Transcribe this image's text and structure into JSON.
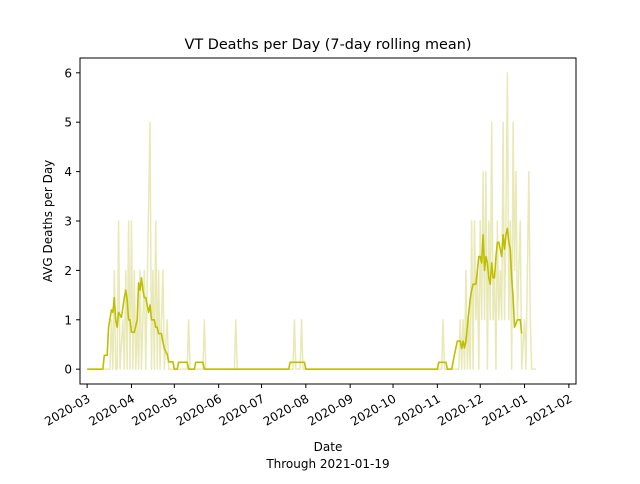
{
  "chart_data": {
    "type": "line",
    "title": "VT Deaths per Day (7-day rolling mean)",
    "xlabel": "Date",
    "xlabel_sub": "Through 2021-01-19",
    "ylabel": "AVG Deaths per Day",
    "xlim": [
      "2020-02-25",
      "2021-02-06"
    ],
    "ylim": [
      -0.3,
      6.3
    ],
    "x_ticks": [
      "2020-03",
      "2020-04",
      "2020-05",
      "2020-06",
      "2020-07",
      "2020-08",
      "2020-09",
      "2020-10",
      "2020-11",
      "2020-12",
      "2021-01",
      "2021-02"
    ],
    "y_ticks": [
      0,
      1,
      2,
      3,
      4,
      5,
      6
    ],
    "grid": false,
    "series": [
      {
        "role": "daily",
        "color": "#e9e9b8",
        "points": [
          [
            "2020-03-01",
            0
          ],
          [
            "2020-03-11",
            0
          ],
          [
            "2020-03-12",
            0
          ],
          [
            "2020-03-13",
            0
          ],
          [
            "2020-03-17",
            0
          ],
          [
            "2020-03-18",
            1
          ],
          [
            "2020-03-19",
            0
          ],
          [
            "2020-03-20",
            2
          ],
          [
            "2020-03-21",
            0
          ],
          [
            "2020-03-22",
            0
          ],
          [
            "2020-03-23",
            3
          ],
          [
            "2020-03-24",
            0
          ],
          [
            "2020-03-26",
            1
          ],
          [
            "2020-03-27",
            0
          ],
          [
            "2020-03-28",
            2
          ],
          [
            "2020-03-29",
            0
          ],
          [
            "2020-03-30",
            3
          ],
          [
            "2020-03-31",
            0
          ],
          [
            "2020-04-01",
            3
          ],
          [
            "2020-04-02",
            0
          ],
          [
            "2020-04-03",
            2
          ],
          [
            "2020-04-04",
            0
          ],
          [
            "2020-04-05",
            1
          ],
          [
            "2020-04-06",
            0
          ],
          [
            "2020-04-07",
            2
          ],
          [
            "2020-04-08",
            0
          ],
          [
            "2020-04-09",
            1
          ],
          [
            "2020-04-10",
            2
          ],
          [
            "2020-04-11",
            0
          ],
          [
            "2020-04-14",
            5
          ],
          [
            "2020-04-15",
            0
          ],
          [
            "2020-04-16",
            2
          ],
          [
            "2020-04-17",
            0
          ],
          [
            "2020-04-18",
            3
          ],
          [
            "2020-04-19",
            0
          ],
          [
            "2020-04-20",
            2
          ],
          [
            "2020-04-21",
            0
          ],
          [
            "2020-04-23",
            2
          ],
          [
            "2020-04-24",
            0
          ],
          [
            "2020-04-26",
            1
          ],
          [
            "2020-04-27",
            0
          ],
          [
            "2020-04-29",
            0
          ],
          [
            "2020-05-10",
            0
          ],
          [
            "2020-05-11",
            1
          ],
          [
            "2020-05-12",
            0
          ],
          [
            "2020-05-21",
            0
          ],
          [
            "2020-05-22",
            1
          ],
          [
            "2020-05-23",
            0
          ],
          [
            "2020-06-12",
            0
          ],
          [
            "2020-06-13",
            1
          ],
          [
            "2020-06-14",
            0
          ],
          [
            "2020-07-23",
            0
          ],
          [
            "2020-07-24",
            1
          ],
          [
            "2020-07-25",
            0
          ],
          [
            "2020-07-28",
            0
          ],
          [
            "2020-07-29",
            1
          ],
          [
            "2020-07-30",
            0
          ],
          [
            "2020-11-04",
            0
          ],
          [
            "2020-11-05",
            1
          ],
          [
            "2020-11-06",
            0
          ],
          [
            "2020-11-16",
            0
          ],
          [
            "2020-11-17",
            1
          ],
          [
            "2020-11-18",
            0
          ],
          [
            "2020-11-19",
            1
          ],
          [
            "2020-11-20",
            0
          ],
          [
            "2020-11-21",
            2
          ],
          [
            "2020-11-22",
            0
          ],
          [
            "2020-11-23",
            1
          ],
          [
            "2020-11-24",
            0
          ],
          [
            "2020-11-25",
            3
          ],
          [
            "2020-11-26",
            0
          ],
          [
            "2020-11-27",
            3
          ],
          [
            "2020-11-28",
            1
          ],
          [
            "2020-11-29",
            2
          ],
          [
            "2020-11-30",
            0
          ],
          [
            "2020-12-01",
            3
          ],
          [
            "2020-12-02",
            1
          ],
          [
            "2020-12-03",
            4
          ],
          [
            "2020-12-04",
            1
          ],
          [
            "2020-12-05",
            4
          ],
          [
            "2020-12-06",
            0
          ],
          [
            "2020-12-07",
            3
          ],
          [
            "2020-12-08",
            1
          ],
          [
            "2020-12-09",
            5
          ],
          [
            "2020-12-10",
            1
          ],
          [
            "2020-12-11",
            2
          ],
          [
            "2020-12-12",
            0
          ],
          [
            "2020-12-13",
            3
          ],
          [
            "2020-12-14",
            1
          ],
          [
            "2020-12-15",
            2
          ],
          [
            "2020-12-16",
            1
          ],
          [
            "2020-12-17",
            5
          ],
          [
            "2020-12-18",
            1
          ],
          [
            "2020-12-19",
            3
          ],
          [
            "2020-12-20",
            6
          ],
          [
            "2020-12-21",
            1
          ],
          [
            "2020-12-22",
            3
          ],
          [
            "2020-12-23",
            0
          ],
          [
            "2020-12-24",
            5
          ],
          [
            "2020-12-25",
            2
          ],
          [
            "2020-12-26",
            4
          ],
          [
            "2020-12-27",
            1
          ],
          [
            "2020-12-28",
            2
          ],
          [
            "2020-12-29",
            3
          ],
          [
            "2020-12-30",
            0
          ],
          [
            "2021-01-01",
            1
          ],
          [
            "2021-01-02",
            0
          ],
          [
            "2021-01-04",
            4
          ],
          [
            "2021-01-05",
            1
          ],
          [
            "2021-01-06",
            0
          ],
          [
            "2021-01-09",
            0
          ]
        ]
      },
      {
        "role": "rolling-mean",
        "color": "#bfbf00",
        "points": [
          [
            "2020-03-01",
            0
          ],
          [
            "2020-03-12",
            0
          ],
          [
            "2020-03-13",
            0.28
          ],
          [
            "2020-03-15",
            0.28
          ],
          [
            "2020-03-16",
            0.85
          ],
          [
            "2020-03-18",
            1.2
          ],
          [
            "2020-03-19",
            1.15
          ],
          [
            "2020-03-20",
            1.45
          ],
          [
            "2020-03-21",
            1.0
          ],
          [
            "2020-03-22",
            0.85
          ],
          [
            "2020-03-23",
            1.15
          ],
          [
            "2020-03-25",
            1.05
          ],
          [
            "2020-03-27",
            1.45
          ],
          [
            "2020-03-28",
            1.6
          ],
          [
            "2020-03-29",
            1.4
          ],
          [
            "2020-03-30",
            1.0
          ],
          [
            "2020-03-31",
            1.0
          ],
          [
            "2020-04-01",
            0.75
          ],
          [
            "2020-04-03",
            0.75
          ],
          [
            "2020-04-05",
            1.0
          ],
          [
            "2020-04-06",
            1.75
          ],
          [
            "2020-04-07",
            1.6
          ],
          [
            "2020-04-08",
            1.85
          ],
          [
            "2020-04-09",
            1.6
          ],
          [
            "2020-04-10",
            1.45
          ],
          [
            "2020-04-11",
            1.45
          ],
          [
            "2020-04-13",
            1.15
          ],
          [
            "2020-04-14",
            1.3
          ],
          [
            "2020-04-15",
            1.0
          ],
          [
            "2020-04-17",
            1.0
          ],
          [
            "2020-04-18",
            0.85
          ],
          [
            "2020-04-19",
            0.85
          ],
          [
            "2020-04-20",
            0.72
          ],
          [
            "2020-04-22",
            0.72
          ],
          [
            "2020-04-23",
            0.55
          ],
          [
            "2020-04-24",
            0.42
          ],
          [
            "2020-04-26",
            0.3
          ],
          [
            "2020-04-27",
            0.15
          ],
          [
            "2020-04-30",
            0.15
          ],
          [
            "2020-05-01",
            0
          ],
          [
            "2020-05-03",
            0
          ],
          [
            "2020-05-04",
            0.14
          ],
          [
            "2020-05-10",
            0.14
          ],
          [
            "2020-05-11",
            0
          ],
          [
            "2020-05-15",
            0
          ],
          [
            "2020-05-16",
            0.14
          ],
          [
            "2020-05-21",
            0.14
          ],
          [
            "2020-05-22",
            0
          ],
          [
            "2020-07-20",
            0
          ],
          [
            "2020-07-21",
            0.14
          ],
          [
            "2020-07-31",
            0.14
          ],
          [
            "2020-08-01",
            0
          ],
          [
            "2020-11-01",
            0
          ],
          [
            "2020-11-02",
            0.14
          ],
          [
            "2020-11-07",
            0.14
          ],
          [
            "2020-11-08",
            0
          ],
          [
            "2020-11-11",
            0
          ],
          [
            "2020-11-12",
            0.14
          ],
          [
            "2020-11-13",
            0.3
          ],
          [
            "2020-11-15",
            0.57
          ],
          [
            "2020-11-17",
            0.57
          ],
          [
            "2020-11-18",
            0.42
          ],
          [
            "2020-11-19",
            0.57
          ],
          [
            "2020-11-20",
            0.43
          ],
          [
            "2020-11-21",
            0.57
          ],
          [
            "2020-11-23",
            1.15
          ],
          [
            "2020-11-24",
            1.43
          ],
          [
            "2020-11-25",
            1.6
          ],
          [
            "2020-11-26",
            1.72
          ],
          [
            "2020-11-28",
            1.72
          ],
          [
            "2020-11-29",
            2.0
          ],
          [
            "2020-11-30",
            2.28
          ],
          [
            "2020-12-01",
            2.28
          ],
          [
            "2020-12-02",
            2.15
          ],
          [
            "2020-12-03",
            2.72
          ],
          [
            "2020-12-04",
            2.0
          ],
          [
            "2020-12-05",
            2.28
          ],
          [
            "2020-12-06",
            2.15
          ],
          [
            "2020-12-07",
            1.85
          ],
          [
            "2020-12-08",
            1.72
          ],
          [
            "2020-12-09",
            2.15
          ],
          [
            "2020-12-10",
            1.85
          ],
          [
            "2020-12-11",
            1.85
          ],
          [
            "2020-12-12",
            2.28
          ],
          [
            "2020-12-13",
            2.57
          ],
          [
            "2020-12-14",
            2.57
          ],
          [
            "2020-12-15",
            2.43
          ],
          [
            "2020-12-16",
            2.28
          ],
          [
            "2020-12-17",
            2.72
          ],
          [
            "2020-12-18",
            2.43
          ],
          [
            "2020-12-19",
            2.72
          ],
          [
            "2020-12-20",
            2.85
          ],
          [
            "2020-12-21",
            2.57
          ],
          [
            "2020-12-22",
            2.43
          ],
          [
            "2020-12-23",
            1.85
          ],
          [
            "2020-12-24",
            1.45
          ],
          [
            "2020-12-25",
            0.85
          ],
          [
            "2020-12-27",
            1.0
          ],
          [
            "2020-12-29",
            1.0
          ],
          [
            "2020-12-30",
            0.72
          ]
        ]
      }
    ]
  }
}
